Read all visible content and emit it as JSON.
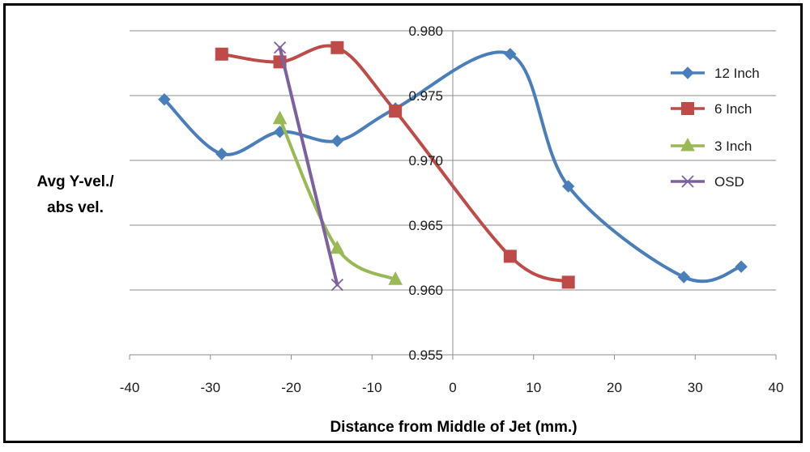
{
  "chart_data": {
    "type": "line",
    "smooth": true,
    "title": "",
    "xlabel": "Distance from Middle of Jet (mm.)",
    "ylabel_lines": [
      "Avg Y-vel./",
      "abs vel."
    ],
    "xlim": [
      -40,
      40
    ],
    "ylim": [
      0.955,
      0.98
    ],
    "x_ticks": [
      -40,
      -30,
      -20,
      -10,
      0,
      10,
      20,
      30,
      40
    ],
    "x_tick_labels": [
      "-40",
      "-30",
      "-20",
      "-10",
      "0",
      "10",
      "20",
      "30",
      "40"
    ],
    "y_ticks": [
      0.955,
      0.96,
      0.965,
      0.97,
      0.975,
      0.98
    ],
    "y_tick_labels": [
      "0.955",
      "0.960",
      "0.965",
      "0.970",
      "0.975",
      "0.980"
    ],
    "grid": "horizontal",
    "legend_position": "right",
    "series": [
      {
        "name": "12 Inch",
        "color": "#4a7ebb",
        "marker": "diamond",
        "x": [
          -35.7,
          -28.6,
          -21.4,
          -14.3,
          -7.1,
          7.1,
          14.3,
          28.6,
          35.7
        ],
        "y": [
          0.9747,
          0.9705,
          0.9722,
          0.9715,
          0.974,
          0.9782,
          0.968,
          0.961,
          0.9618
        ]
      },
      {
        "name": "6 Inch",
        "color": "#be4b48",
        "marker": "square",
        "x": [
          -28.6,
          -21.4,
          -14.3,
          -7.1,
          7.1,
          14.3
        ],
        "y": [
          0.9782,
          0.9776,
          0.9787,
          0.9738,
          0.9626,
          0.9606
        ]
      },
      {
        "name": "3 Inch",
        "color": "#98b954",
        "marker": "triangle",
        "x": [
          -21.4,
          -14.3,
          -7.1
        ],
        "y": [
          0.9732,
          0.9632,
          0.9608
        ]
      },
      {
        "name": "OSD",
        "color": "#7d60a0",
        "marker": "x",
        "x": [
          -21.4,
          -14.3
        ],
        "y": [
          0.9787,
          0.9604
        ]
      }
    ]
  }
}
